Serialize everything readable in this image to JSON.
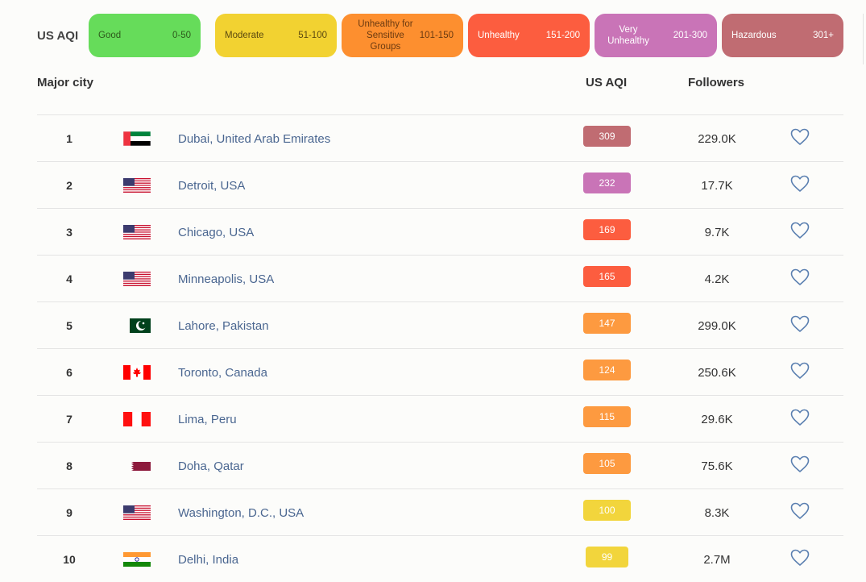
{
  "legend": {
    "label": "US AQI",
    "levels": [
      {
        "name": "Good",
        "range": "0-50",
        "color": "#66dc5a",
        "text_color": "#2e5b1c"
      },
      {
        "name": "Moderate",
        "range": "51-100",
        "color": "#f2d231",
        "text_color": "#5c4a10"
      },
      {
        "name": "Unhealthy for Sensitive Groups",
        "range": "101-150",
        "color": "#fd8f2f",
        "text_color": "#6b3a10"
      },
      {
        "name": "Unhealthy",
        "range": "151-200",
        "color": "#fc5d3f",
        "text_color": "#ffffff"
      },
      {
        "name": "Very Unhealthy",
        "range": "201-300",
        "color": "#c974b7",
        "text_color": "#ffffff"
      },
      {
        "name": "Hazardous",
        "range": "301+",
        "color": "#c06c72",
        "text_color": "#ffffff"
      }
    ]
  },
  "table": {
    "headers": {
      "city": "Major city",
      "aqi": "US AQI",
      "followers": "Followers"
    },
    "rows": [
      {
        "rank": "1",
        "flag": "uae",
        "city": "Dubai, United Arab Emirates",
        "aqi": "309",
        "aqi_color": "#c06c72",
        "followers": "229.0K"
      },
      {
        "rank": "2",
        "flag": "usa",
        "city": "Detroit, USA",
        "aqi": "232",
        "aqi_color": "#c974b7",
        "followers": "17.7K"
      },
      {
        "rank": "3",
        "flag": "usa",
        "city": "Chicago, USA",
        "aqi": "169",
        "aqi_color": "#fc5d3f",
        "followers": "9.7K"
      },
      {
        "rank": "4",
        "flag": "usa",
        "city": "Minneapolis, USA",
        "aqi": "165",
        "aqi_color": "#fc5d3f",
        "followers": "4.2K"
      },
      {
        "rank": "5",
        "flag": "pakistan",
        "city": "Lahore, Pakistan",
        "aqi": "147",
        "aqi_color": "#fd9a40",
        "followers": "299.0K"
      },
      {
        "rank": "6",
        "flag": "canada",
        "city": "Toronto, Canada",
        "aqi": "124",
        "aqi_color": "#fd9a40",
        "followers": "250.6K"
      },
      {
        "rank": "7",
        "flag": "peru",
        "city": "Lima, Peru",
        "aqi": "115",
        "aqi_color": "#fd9a40",
        "followers": "29.6K"
      },
      {
        "rank": "8",
        "flag": "qatar",
        "city": "Doha, Qatar",
        "aqi": "105",
        "aqi_color": "#fd9a40",
        "followers": "75.6K"
      },
      {
        "rank": "9",
        "flag": "usa",
        "city": "Washington, D.C., USA",
        "aqi": "100",
        "aqi_color": "#f2d53c",
        "followers": "8.3K"
      },
      {
        "rank": "10",
        "flag": "india",
        "city": "Delhi, India",
        "aqi": "99",
        "aqi_color": "#f2d53c",
        "followers": "2.7M"
      }
    ]
  }
}
